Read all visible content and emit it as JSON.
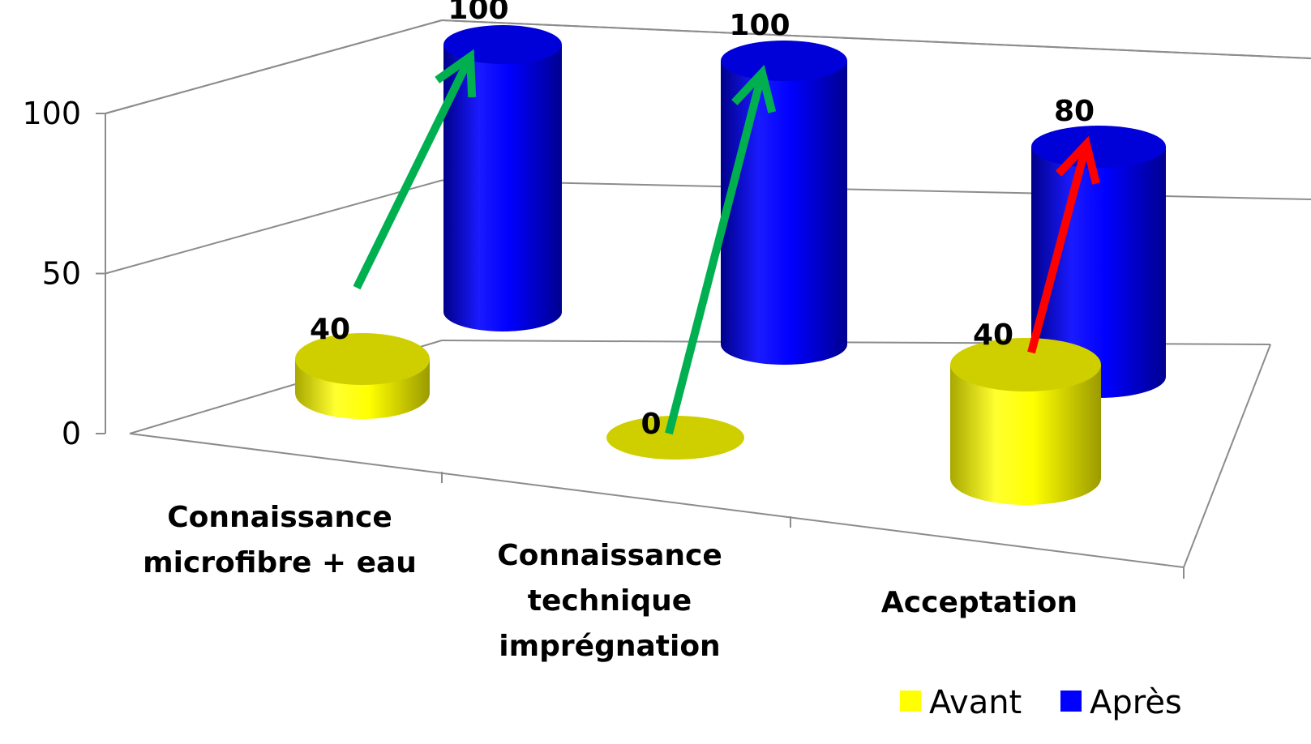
{
  "chart_data": {
    "type": "bar",
    "style": "3d-cylinder",
    "categories": [
      [
        "Connaissance",
        "microfibre + eau"
      ],
      [
        "Connaissance",
        "technique",
        "imprégnation"
      ],
      [
        "Acceptation"
      ]
    ],
    "series": [
      {
        "name": "Avant",
        "values": [
          40,
          0,
          40
        ],
        "color": "#ffff00"
      },
      {
        "name": "Après",
        "values": [
          100,
          100,
          80
        ],
        "color": "#0000ff"
      }
    ],
    "yticks": [
      0,
      50,
      100
    ],
    "ylim": [
      0,
      100
    ],
    "grid": true,
    "legend_position": "bottom-right",
    "arrows": [
      {
        "category": 0,
        "color": "#00b050"
      },
      {
        "category": 1,
        "color": "#00b050"
      },
      {
        "category": 2,
        "color": "#ff0000"
      }
    ]
  }
}
